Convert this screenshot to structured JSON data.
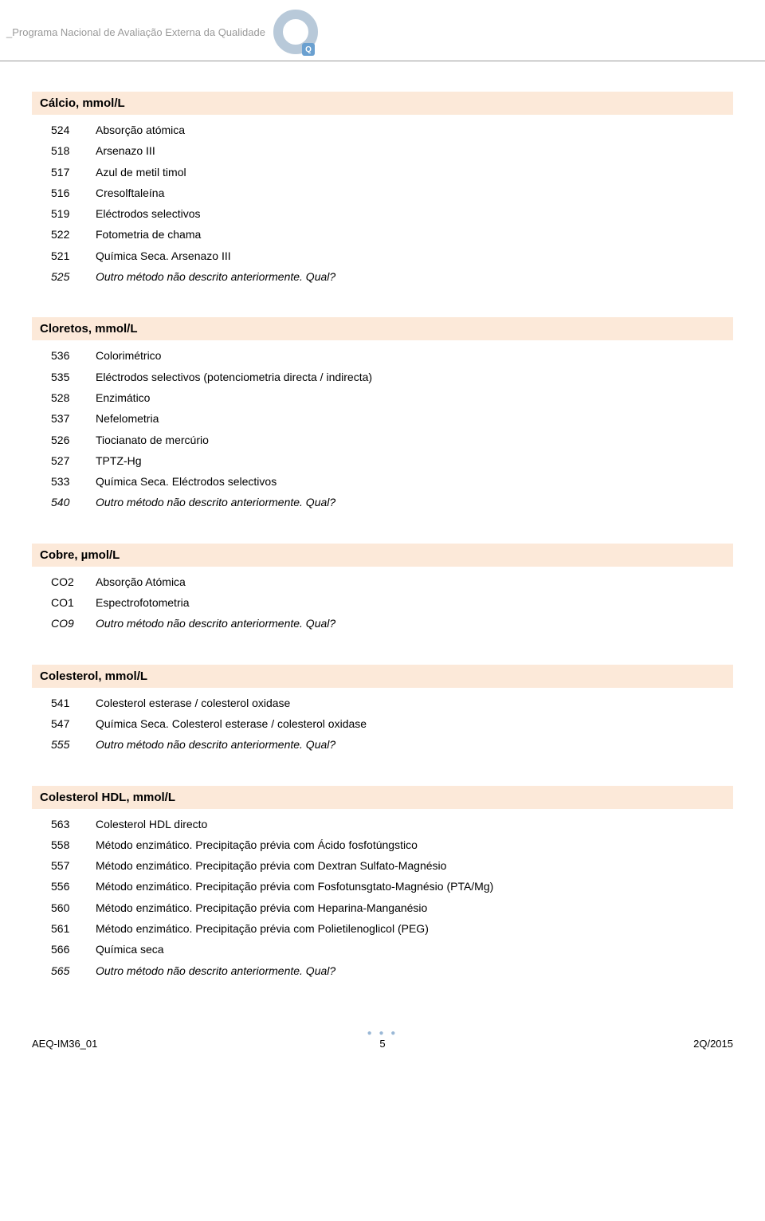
{
  "header": {
    "program_text": "_Programa Nacional de Avaliação Externa da Qualidade",
    "logo_letter": "Q"
  },
  "sections": [
    {
      "title": "Cálcio, mmol/L",
      "rows": [
        {
          "code": "524",
          "label": "Absorção atómica",
          "italic": false
        },
        {
          "code": "518",
          "label": "Arsenazo III",
          "italic": false
        },
        {
          "code": "517",
          "label": "Azul de metil timol",
          "italic": false
        },
        {
          "code": "516",
          "label": "Cresolftaleína",
          "italic": false
        },
        {
          "code": "519",
          "label": "Eléctrodos selectivos",
          "italic": false
        },
        {
          "code": "522",
          "label": "Fotometria de chama",
          "italic": false
        },
        {
          "code": "521",
          "label": "Química Seca. Arsenazo III",
          "italic": false
        },
        {
          "code": "525",
          "label": "Outro método não descrito anteriormente. Qual?",
          "italic": true
        }
      ]
    },
    {
      "title": "Cloretos, mmol/L",
      "rows": [
        {
          "code": "536",
          "label": "Colorimétrico",
          "italic": false
        },
        {
          "code": "535",
          "label": "Eléctrodos selectivos (potenciometria directa / indirecta)",
          "italic": false
        },
        {
          "code": "528",
          "label": "Enzimático",
          "italic": false
        },
        {
          "code": "537",
          "label": "Nefelometria",
          "italic": false
        },
        {
          "code": "526",
          "label": "Tiocianato de mercúrio",
          "italic": false
        },
        {
          "code": "527",
          "label": "TPTZ-Hg",
          "italic": false
        },
        {
          "code": "533",
          "label": "Química Seca. Eléctrodos selectivos",
          "italic": false
        },
        {
          "code": "540",
          "label": "Outro método não descrito anteriormente. Qual?",
          "italic": true
        }
      ]
    },
    {
      "title": "Cobre, µmol/L",
      "rows": [
        {
          "code": "CO2",
          "label": "Absorção Atómica",
          "italic": false
        },
        {
          "code": "CO1",
          "label": "Espectrofotometria",
          "italic": false
        },
        {
          "code": "CO9",
          "label": "Outro método não descrito anteriormente. Qual?",
          "italic": true
        }
      ]
    },
    {
      "title": "Colesterol, mmol/L",
      "rows": [
        {
          "code": "541",
          "label": "Colesterol esterase / colesterol oxidase",
          "italic": false
        },
        {
          "code": "547",
          "label": "Química Seca. Colesterol esterase / colesterol oxidase",
          "italic": false
        },
        {
          "code": "555",
          "label": "Outro método não descrito anteriormente. Qual?",
          "italic": true
        }
      ]
    },
    {
      "title": "Colesterol HDL, mmol/L",
      "rows": [
        {
          "code": "563",
          "label": "Colesterol HDL directo",
          "italic": false
        },
        {
          "code": "558",
          "label": "Método enzimático. Precipitação prévia com Ácido fosfotúngstico",
          "italic": false
        },
        {
          "code": "557",
          "label": "Método enzimático. Precipitação prévia com Dextran Sulfato-Magnésio",
          "italic": false
        },
        {
          "code": "556",
          "label": "Método enzimático. Precipitação prévia com Fosfotunsgtato-Magnésio (PTA/Mg)",
          "italic": false
        },
        {
          "code": "560",
          "label": "Método enzimático. Precipitação prévia com Heparina-Manganésio",
          "italic": false
        },
        {
          "code": "561",
          "label": "Método enzimático. Precipitação prévia com Polietilenoglicol (PEG)",
          "italic": false
        },
        {
          "code": "566",
          "label": "Química seca",
          "italic": false
        },
        {
          "code": "565",
          "label": "Outro método não descrito anteriormente. Qual?",
          "italic": true
        }
      ]
    }
  ],
  "footer": {
    "left": "AEQ-IM36_01",
    "page": "5",
    "right": "2Q/2015"
  },
  "colors": {
    "section_bg": "#fce9d9",
    "header_text": "#9a9a9a",
    "logo_ring": "#b8c9d9",
    "logo_q_bg": "#6aa0d0"
  }
}
